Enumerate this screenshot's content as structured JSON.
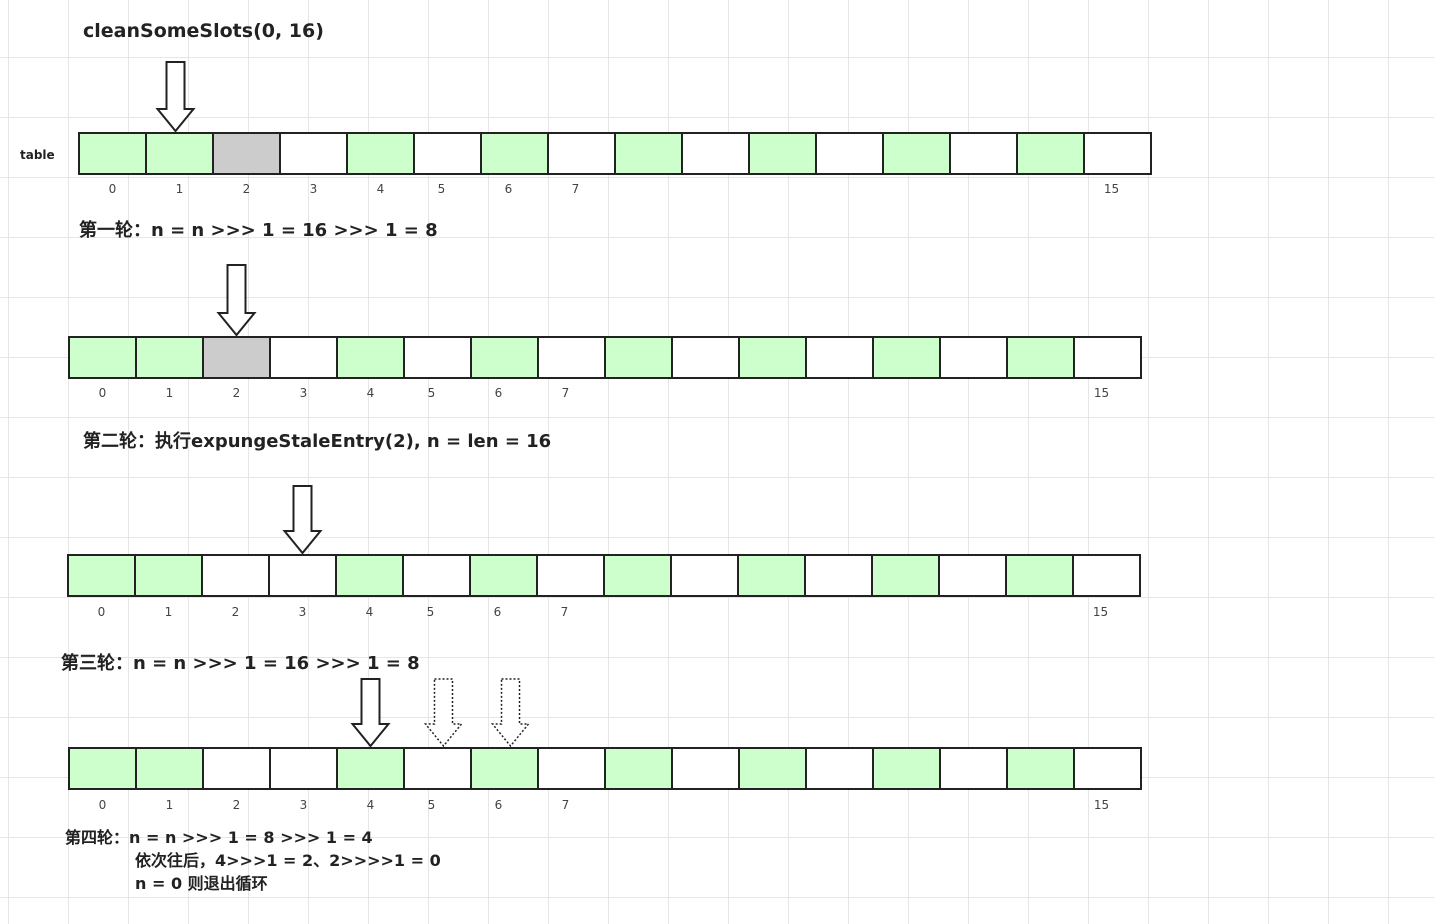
{
  "title": "cleanSomeSlots(0, 16)",
  "table_label": "table",
  "colors": {
    "occupied": "#ccffcc",
    "stale": "#cccccc",
    "empty": "#ffffff",
    "border": "#222222"
  },
  "index_labels": [
    "0",
    "1",
    "2",
    "3",
    "4",
    "5",
    "6",
    "7",
    "15"
  ],
  "rows": [
    {
      "cells": [
        "occupied",
        "occupied",
        "stale",
        "empty",
        "occupied",
        "empty",
        "occupied",
        "empty",
        "occupied",
        "empty",
        "occupied",
        "empty",
        "occupied",
        "empty",
        "occupied",
        "empty"
      ],
      "pointer": 1,
      "dotted_pointers": [],
      "caption": [
        "第一轮：n = n >>> 1 = 16 >>>  1 = 8"
      ]
    },
    {
      "cells": [
        "occupied",
        "occupied",
        "stale",
        "empty",
        "occupied",
        "empty",
        "occupied",
        "empty",
        "occupied",
        "empty",
        "occupied",
        "empty",
        "occupied",
        "empty",
        "occupied",
        "empty"
      ],
      "pointer": 2,
      "dotted_pointers": [],
      "caption": [
        "第二轮：执行expungeStaleEntry(2), n = len = 16"
      ]
    },
    {
      "cells": [
        "occupied",
        "occupied",
        "empty",
        "empty",
        "occupied",
        "empty",
        "occupied",
        "empty",
        "occupied",
        "empty",
        "occupied",
        "empty",
        "occupied",
        "empty",
        "occupied",
        "empty"
      ],
      "pointer": 3,
      "dotted_pointers": [],
      "caption": [
        "第三轮：n = n >>> 1 = 16 >>> 1  = 8"
      ]
    },
    {
      "cells": [
        "occupied",
        "occupied",
        "empty",
        "empty",
        "occupied",
        "empty",
        "occupied",
        "empty",
        "occupied",
        "empty",
        "occupied",
        "empty",
        "occupied",
        "empty",
        "occupied",
        "empty"
      ],
      "pointer": 4,
      "dotted_pointers": [
        5,
        6
      ],
      "caption": [
        "第四轮：n = n >>> 1 = 8 >>> 1 = 4",
        "依次往后，4>>>1 = 2、2>>>>1 = 0",
        "n = 0 则退出循环"
      ]
    }
  ]
}
